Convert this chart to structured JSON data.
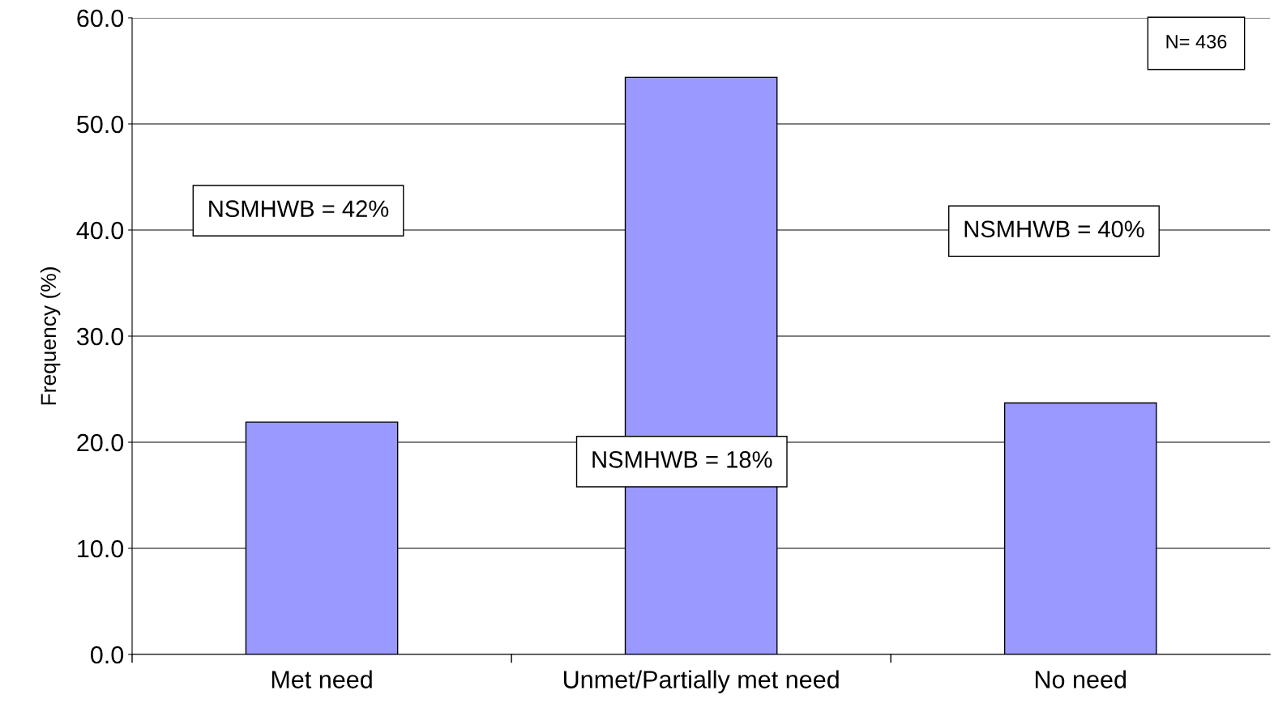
{
  "chart_data": {
    "type": "bar",
    "ylabel": "Frequency (%)",
    "categories": [
      "Met need",
      "Unmet/Partially met need",
      "No need"
    ],
    "values": [
      21.9,
      54.4,
      23.7
    ],
    "color": "#9999ff",
    "ylim": [
      0,
      60
    ],
    "yticks": [
      {
        "value": 0,
        "label": "0.0"
      },
      {
        "value": 10,
        "label": "10.0"
      },
      {
        "value": 20,
        "label": "20.0"
      },
      {
        "value": 30,
        "label": "30.0"
      },
      {
        "value": 40,
        "label": "40.0"
      },
      {
        "value": 50,
        "label": "50.0"
      },
      {
        "value": 60,
        "label": "60.0"
      }
    ],
    "grid": "y",
    "legend": false,
    "annotations": [
      "NSMHWB = 42%",
      "NSMHWB = 18%",
      "NSMHWB = 40%",
      "N= 436"
    ]
  }
}
